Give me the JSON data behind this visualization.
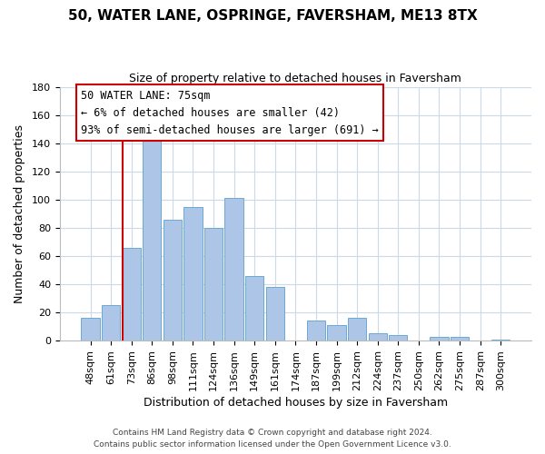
{
  "title": "50, WATER LANE, OSPRINGE, FAVERSHAM, ME13 8TX",
  "subtitle": "Size of property relative to detached houses in Faversham",
  "xlabel": "Distribution of detached houses by size in Faversham",
  "ylabel": "Number of detached properties",
  "bar_labels": [
    "48sqm",
    "61sqm",
    "73sqm",
    "86sqm",
    "98sqm",
    "111sqm",
    "124sqm",
    "136sqm",
    "149sqm",
    "161sqm",
    "174sqm",
    "187sqm",
    "199sqm",
    "212sqm",
    "224sqm",
    "237sqm",
    "250sqm",
    "262sqm",
    "275sqm",
    "287sqm",
    "300sqm"
  ],
  "bar_values": [
    16,
    25,
    66,
    146,
    86,
    95,
    80,
    101,
    46,
    38,
    0,
    14,
    11,
    16,
    5,
    4,
    0,
    3,
    3,
    0,
    1
  ],
  "bar_color": "#adc6e8",
  "bar_edge_color": "#6aaad4",
  "ylim": [
    0,
    180
  ],
  "yticks": [
    0,
    20,
    40,
    60,
    80,
    100,
    120,
    140,
    160,
    180
  ],
  "annotation_title": "50 WATER LANE: 75sqm",
  "annotation_line1": "← 6% of detached houses are smaller (42)",
  "annotation_line2": "93% of semi-detached houses are larger (691) →",
  "annotation_box_color": "#ffffff",
  "annotation_box_edge": "#cc0000",
  "red_line_color": "#cc0000",
  "footer1": "Contains HM Land Registry data © Crown copyright and database right 2024.",
  "footer2": "Contains public sector information licensed under the Open Government Licence v3.0.",
  "background_color": "#ffffff",
  "grid_color": "#ccd9e8",
  "title_fontsize": 11,
  "subtitle_fontsize": 9,
  "xlabel_fontsize": 9,
  "ylabel_fontsize": 9,
  "tick_fontsize": 8,
  "annotation_fontsize": 8.5
}
